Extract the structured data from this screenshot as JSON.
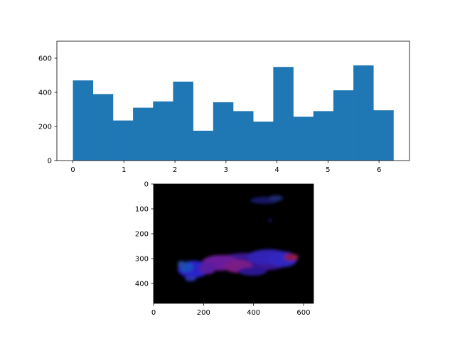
{
  "chart_data": [
    {
      "type": "bar",
      "title": "",
      "xlabel": "",
      "ylabel": "",
      "bin_edges": [
        0.0,
        0.3927,
        0.7854,
        1.1781,
        1.5708,
        1.9635,
        2.3562,
        2.7489,
        3.1416,
        3.5343,
        3.927,
        4.3197,
        4.7124,
        5.1051,
        5.4978,
        5.8905,
        6.2832
      ],
      "values": [
        470,
        390,
        235,
        310,
        347,
        463,
        175,
        342,
        290,
        228,
        549,
        257,
        290,
        412,
        558,
        295
      ],
      "xlim": [
        -0.3142,
        6.5974
      ],
      "ylim": [
        0,
        700
      ],
      "xticks": [
        "0",
        "1",
        "2",
        "3",
        "4",
        "5",
        "6"
      ],
      "yticks": [
        "0",
        "200",
        "400",
        "600"
      ],
      "grid": false,
      "colors": {
        "bar": "#1f77b4"
      }
    },
    {
      "type": "heatmap",
      "description_free": true,
      "xlim": [
        0,
        640
      ],
      "ylim": [
        480,
        0
      ],
      "xticks": [
        "0",
        "200",
        "400",
        "600"
      ],
      "yticks": [
        "0",
        "100",
        "200",
        "300",
        "400"
      ],
      "grid": false,
      "colors": {
        "background": "#000000"
      }
    }
  ]
}
